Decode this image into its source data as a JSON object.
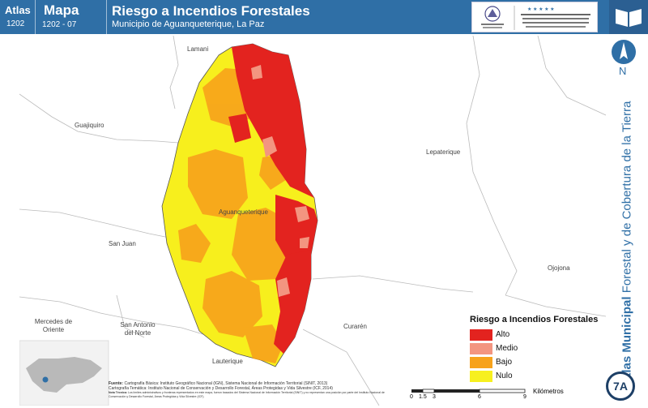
{
  "header": {
    "atlas_label": "Atlas",
    "atlas_value": "1202",
    "mapa_label": "Mapa",
    "mapa_value": "1202 - 07",
    "title": "Riesgo a Incendios Forestales",
    "subtitle": "Municipio de Aguanqueterique, La Paz",
    "logo_left_text": "GOBIERNO DE LA REPÚBLICA DE HONDURAS",
    "logo_right_text": "INSTITUTO NACIONAL DE CONSERVACIÓN Y DESARROLLO FORESTAL, ÁREAS PROTEGIDAS Y VIDA SILVESTRE ICF",
    "book_icon": "open-book-icon"
  },
  "sidebar": {
    "north_label": "N",
    "vertical_bold": "Atlas Municipal",
    "vertical_rest": " Forestal y de Cobertura de la Tierra",
    "badge": "7A"
  },
  "places": [
    {
      "name": "Lamani"
    },
    {
      "name": "Guajiquiro"
    },
    {
      "name": "Lepaterique"
    },
    {
      "name": "Aguanqueterique"
    },
    {
      "name": "San Juan"
    },
    {
      "name": "Ojojona"
    },
    {
      "name": "Mercedes de Oriente"
    },
    {
      "name": "San Antonio del Norte"
    },
    {
      "name": "Curarén"
    },
    {
      "name": "Lauterique"
    }
  ],
  "legend": {
    "title": "Riesgo a Incendios Forestales",
    "items": [
      {
        "label": "Alto",
        "color": "#e3231f"
      },
      {
        "label": "Medio",
        "color": "#f39580"
      },
      {
        "label": "Bajo",
        "color": "#f7a21b"
      },
      {
        "label": "Nulo",
        "color": "#f7f01f"
      }
    ]
  },
  "sources": {
    "label": "Fuente:",
    "line1": "Cartografía Básica: Instituto Geográfico Nacional (IGN), Sistema Nacional de Información Territorial (SINIT, 2013)",
    "line2": "Cartografía Temática: Instituto Nacional de Conservación y Desarrollo Forestal, Áreas Protegidas y Vida Silvestre (ICF, 2014)",
    "note_label": "Nota Técnica:",
    "note": "Los límites administrativos y fronteras representados en este mapa, fueron basados del Sistema Nacional de Información Territorial (SINIT) y no representan una posición por parte del Instituto Nacional de Conservación y Desarrollo Forestal, Áreas Protegidas y Vida Silvestre (ICF)."
  },
  "scale": {
    "ticks": [
      "0",
      "1.5",
      "3",
      "6",
      "9"
    ],
    "unit": "Kilómetros"
  }
}
